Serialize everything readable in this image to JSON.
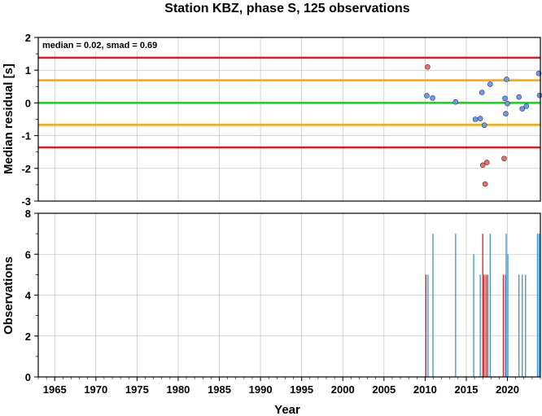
{
  "chart_data": [
    {
      "type": "scatter",
      "title": "Station KBZ, phase S, 125 observations",
      "annotation": "median = 0.02, smad = 0.69",
      "ylabel": "Median residual [s]",
      "xlim": [
        1963,
        2024
      ],
      "ylim": [
        -3,
        2
      ],
      "yticks": [
        2,
        1,
        0,
        -1,
        -2,
        -3
      ],
      "hlines": [
        {
          "y": 1.38,
          "color": "#e31a1c"
        },
        {
          "y": 0.69,
          "color": "#ffa500"
        },
        {
          "y": 0.0,
          "color": "#00e000"
        },
        {
          "y": -0.67,
          "color": "#ffa500"
        },
        {
          "y": -1.36,
          "color": "#e31a1c"
        }
      ],
      "series": [
        {
          "color": "#6b9bff",
          "points": [
            {
              "x": 2010.2,
              "y": 0.22
            },
            {
              "x": 2010.9,
              "y": 0.15
            },
            {
              "x": 2013.7,
              "y": 0.03
            },
            {
              "x": 2016.1,
              "y": -0.5
            },
            {
              "x": 2016.7,
              "y": -0.48
            },
            {
              "x": 2016.9,
              "y": 0.32
            },
            {
              "x": 2017.2,
              "y": -0.68
            },
            {
              "x": 2017.9,
              "y": 0.57
            },
            {
              "x": 2019.7,
              "y": 0.14
            },
            {
              "x": 2019.8,
              "y": -0.33
            },
            {
              "x": 2019.9,
              "y": 0.72
            },
            {
              "x": 2020.0,
              "y": -0.02
            },
            {
              "x": 2021.4,
              "y": 0.18
            },
            {
              "x": 2021.8,
              "y": -0.18
            },
            {
              "x": 2022.3,
              "y": -0.1
            },
            {
              "x": 2023.8,
              "y": 0.9
            },
            {
              "x": 2023.9,
              "y": 0.23
            }
          ]
        },
        {
          "color": "#f26b6b",
          "points": [
            {
              "x": 2010.3,
              "y": 1.1
            },
            {
              "x": 2017.0,
              "y": -1.9
            },
            {
              "x": 2017.3,
              "y": -2.48
            },
            {
              "x": 2017.5,
              "y": -1.82
            },
            {
              "x": 2019.6,
              "y": -1.7
            }
          ]
        }
      ]
    },
    {
      "type": "bar",
      "xlabel": "Year",
      "ylabel": "Observations",
      "xlim": [
        1963,
        2024
      ],
      "ylim": [
        0,
        8
      ],
      "yticks": [
        8,
        6,
        4,
        2,
        0
      ],
      "xticks": [
        1965,
        1970,
        1975,
        1980,
        1985,
        1990,
        1995,
        2000,
        2005,
        2010,
        2015,
        2020
      ],
      "bars": [
        {
          "x": 2010.1,
          "value": 5,
          "color": "#e31a1c"
        },
        {
          "x": 2010.35,
          "value": 5,
          "color": "#3a8fd6"
        },
        {
          "x": 2010.95,
          "value": 7,
          "color": "#3a8fd6"
        },
        {
          "x": 2013.7,
          "value": 7,
          "color": "#3a8fd6"
        },
        {
          "x": 2015.9,
          "value": 6,
          "color": "#3a8fd6"
        },
        {
          "x": 2016.7,
          "value": 5,
          "color": "#3a8fd6"
        },
        {
          "x": 2017.0,
          "value": 7,
          "color": "#e31a1c"
        },
        {
          "x": 2017.15,
          "value": 5,
          "color": "#e31a1c"
        },
        {
          "x": 2017.4,
          "value": 5,
          "color": "#e31a1c"
        },
        {
          "x": 2017.6,
          "value": 5,
          "color": "#e31a1c"
        },
        {
          "x": 2017.9,
          "value": 7,
          "color": "#3a8fd6"
        },
        {
          "x": 2019.5,
          "value": 5,
          "color": "#e31a1c"
        },
        {
          "x": 2019.75,
          "value": 5,
          "color": "#3a8fd6"
        },
        {
          "x": 2019.85,
          "value": 7,
          "color": "#3a8fd6"
        },
        {
          "x": 2020.05,
          "value": 6,
          "color": "#3a8fd6"
        },
        {
          "x": 2021.4,
          "value": 5,
          "color": "#3a8fd6"
        },
        {
          "x": 2021.8,
          "value": 5,
          "color": "#3a8fd6"
        },
        {
          "x": 2022.2,
          "value": 5,
          "color": "#3a8fd6"
        },
        {
          "x": 2023.65,
          "value": 7,
          "color": "#3a8fd6"
        },
        {
          "x": 2023.85,
          "value": 7,
          "color": "#3a8fd6"
        }
      ]
    }
  ]
}
